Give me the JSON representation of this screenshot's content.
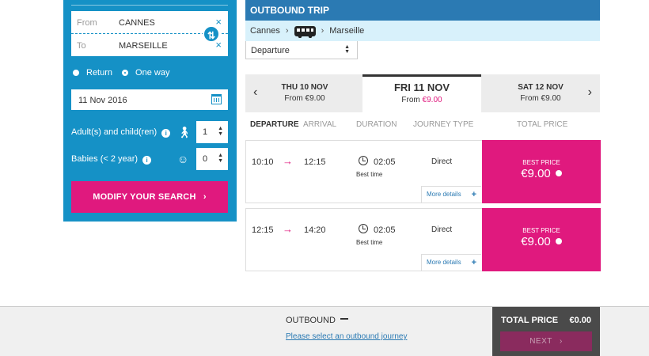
{
  "search": {
    "from_label": "From",
    "from_value": "CANNES",
    "to_label": "To",
    "to_value": "MARSEILLE",
    "trip_types": [
      {
        "label": "Return",
        "selected": false
      },
      {
        "label": "One way",
        "selected": true
      }
    ],
    "date_value": "11 Nov 2016",
    "adults_label": "Adult(s) and child(ren)",
    "adults_value": "1",
    "babies_label": "Babies (< 2 year)",
    "babies_value": "0",
    "modify_label": "MODIFY YOUR SEARCH",
    "modify_chevron": "›"
  },
  "trip": {
    "header": "OUTBOUND TRIP",
    "origin": "Cannes",
    "destination": "Marseille",
    "route_sep": "›",
    "sort_value": "Departure"
  },
  "dates": [
    {
      "day": "THU 10 NOV",
      "from_label": "From",
      "price": "€9.00"
    },
    {
      "day": "FRI 11 NOV",
      "from_label": "From",
      "price": "€9.00"
    },
    {
      "day": "SAT 12 NOV",
      "from_label": "From",
      "price": "€9.00"
    }
  ],
  "columns": [
    "DEPARTURE",
    "ARRIVAL",
    "DURATION",
    "JOURNEY TYPE",
    "TOTAL PRICE"
  ],
  "journeys": [
    {
      "departure": "10:10",
      "arrival": "12:15",
      "duration": "02:05",
      "duration_note": "Best time",
      "type": "Direct",
      "details_label": "More details",
      "price_label": "BEST PRICE",
      "price": "€9.00"
    },
    {
      "departure": "12:15",
      "arrival": "14:20",
      "duration": "02:05",
      "duration_note": "Best time",
      "type": "Direct",
      "details_label": "More details",
      "price_label": "BEST PRICE",
      "price": "€9.00"
    }
  ],
  "footer": {
    "title": "OUTBOUND",
    "prompt": "Please select an outbound journey",
    "total_label": "TOTAL PRICE",
    "total_value": "€0.00",
    "next_label": "NEXT",
    "next_chevron": "›"
  },
  "icons": {
    "clear": "×",
    "swap": "⇅",
    "info": "i",
    "plus": "+",
    "arrow_left": "‹",
    "arrow_right": "›",
    "journey_arrow": "→"
  },
  "colors": {
    "panel_blue": "#1591c6",
    "header_blue": "#2b7ab3",
    "accent_pink": "#e0197e",
    "route_bg": "#d8f1fb",
    "total_bg": "#4a4a4a"
  }
}
